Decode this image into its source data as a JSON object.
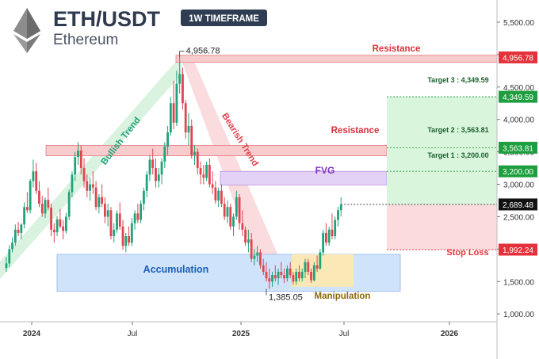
{
  "header": {
    "pair": "ETH/USDT",
    "asset": "Ethereum",
    "timeframe": "1W TIMEFRAME",
    "logo_icon": "ethereum-diamond-icon"
  },
  "colors": {
    "bull": "#1fa37a",
    "bear": "#e0454f",
    "resistance_fill": "#f8cccc",
    "resistance_text": "#d9303a",
    "target_fill": "#d9f6dd",
    "target_badge": "#1e9e3e",
    "stop_fill": "#fbdbdd",
    "stop_badge": "#e3323b",
    "fvg_fill": "#e3d2f5",
    "fvg_text": "#7d35b8",
    "accum_fill": "#cfe3fb",
    "accum_text": "#1a5fb8",
    "manip_fill": "#fae9b6",
    "manip_text": "#8a6a10",
    "price_badge": "#111111"
  },
  "chart_data": {
    "type": "candlestick",
    "title": "ETH/USDT",
    "xlabel": "",
    "ylabel": "",
    "x_ticks": [
      "2024",
      "Jul",
      "2025",
      "Jul",
      "2026"
    ],
    "y_ticks": [
      "5,500.00",
      "5,000.00",
      "4,500.00",
      "4,000.00",
      "3,500.00",
      "3,000.00",
      "2,500.00",
      "2,000.00",
      "1,500.00",
      "1,000.00"
    ],
    "ylim": [
      880,
      5720
    ],
    "grid": false,
    "last_price": "2,689.48",
    "price_badges": [
      {
        "text": "4,956.78",
        "kind": "resistance"
      },
      {
        "text": "4,349.59",
        "kind": "target"
      },
      {
        "text": "3,563.81",
        "kind": "target"
      },
      {
        "text": "3,200.00",
        "kind": "target"
      },
      {
        "text": "2,689.48",
        "kind": "current"
      },
      {
        "text": "1,992.24",
        "kind": "stop"
      }
    ],
    "annotations": {
      "ath": "4,956.78",
      "low": "1,385.05",
      "resistance": "Resistance",
      "fvg": "FVG",
      "accumulation": "Accumulation",
      "manipulation": "Manipulation",
      "bullish_trend": "Bullish Trend",
      "bearish_trend": "Bearish Trend",
      "target3": "Target 3 : 4,349.59",
      "target2": "Target 2 : 3,563.81",
      "target1": "Target 1 : 3,200.00",
      "stop_loss": "Stop Loss"
    },
    "levels": {
      "resistance_top": [
        4880,
        4990
      ],
      "resistance_mid": [
        3440,
        3600
      ],
      "fvg": [
        2990,
        3200
      ],
      "accumulation": [
        1350,
        1920
      ],
      "manipulation": [
        1420,
        1920
      ],
      "target_zone": [
        2689.48,
        4349.59
      ],
      "stop_zone": [
        1992.24,
        2689.48
      ]
    },
    "candles": [
      {
        "o": 1710,
        "h": 1880,
        "l": 1650,
        "c": 1780
      },
      {
        "o": 1780,
        "h": 2060,
        "l": 1720,
        "c": 2000
      },
      {
        "o": 2000,
        "h": 2180,
        "l": 1950,
        "c": 2100
      },
      {
        "o": 2100,
        "h": 2380,
        "l": 2050,
        "c": 2300
      },
      {
        "o": 2300,
        "h": 2420,
        "l": 2200,
        "c": 2250
      },
      {
        "o": 2250,
        "h": 2400,
        "l": 2150,
        "c": 2380
      },
      {
        "o": 2380,
        "h": 2720,
        "l": 2320,
        "c": 2650
      },
      {
        "o": 2650,
        "h": 2880,
        "l": 2560,
        "c": 2600
      },
      {
        "o": 2600,
        "h": 3080,
        "l": 2550,
        "c": 3050
      },
      {
        "o": 3050,
        "h": 3380,
        "l": 2950,
        "c": 3200
      },
      {
        "o": 3200,
        "h": 3330,
        "l": 2850,
        "c": 2900
      },
      {
        "o": 2900,
        "h": 3050,
        "l": 2650,
        "c": 2700
      },
      {
        "o": 2700,
        "h": 2820,
        "l": 2500,
        "c": 2550
      },
      {
        "o": 2550,
        "h": 2800,
        "l": 2480,
        "c": 2760
      },
      {
        "o": 2760,
        "h": 2950,
        "l": 2600,
        "c": 2640
      },
      {
        "o": 2640,
        "h": 2700,
        "l": 2200,
        "c": 2300
      },
      {
        "o": 2300,
        "h": 2400,
        "l": 2100,
        "c": 2260
      },
      {
        "o": 2260,
        "h": 2510,
        "l": 2200,
        "c": 2460
      },
      {
        "o": 2460,
        "h": 2620,
        "l": 2320,
        "c": 2350
      },
      {
        "o": 2350,
        "h": 2450,
        "l": 2150,
        "c": 2280
      },
      {
        "o": 2280,
        "h": 2560,
        "l": 2240,
        "c": 2500
      },
      {
        "o": 2500,
        "h": 2920,
        "l": 2450,
        "c": 2880
      },
      {
        "o": 2880,
        "h": 3200,
        "l": 2800,
        "c": 3150
      },
      {
        "o": 3150,
        "h": 3500,
        "l": 3050,
        "c": 3420
      },
      {
        "o": 3420,
        "h": 3650,
        "l": 3300,
        "c": 3520
      },
      {
        "o": 3520,
        "h": 3600,
        "l": 3150,
        "c": 3250
      },
      {
        "o": 3250,
        "h": 3400,
        "l": 2950,
        "c": 3050
      },
      {
        "o": 3050,
        "h": 3150,
        "l": 2800,
        "c": 2900
      },
      {
        "o": 2900,
        "h": 3100,
        "l": 2750,
        "c": 3000
      },
      {
        "o": 3000,
        "h": 3200,
        "l": 2850,
        "c": 2950
      },
      {
        "o": 2950,
        "h": 3050,
        "l": 2600,
        "c": 2650
      },
      {
        "o": 2650,
        "h": 2850,
        "l": 2550,
        "c": 2800
      },
      {
        "o": 2800,
        "h": 3000,
        "l": 2650,
        "c": 2700
      },
      {
        "o": 2700,
        "h": 2800,
        "l": 2400,
        "c": 2500
      },
      {
        "o": 2500,
        "h": 2700,
        "l": 2350,
        "c": 2600
      },
      {
        "o": 2600,
        "h": 2650,
        "l": 2150,
        "c": 2200
      },
      {
        "o": 2200,
        "h": 2400,
        "l": 2100,
        "c": 2300
      },
      {
        "o": 2300,
        "h": 2600,
        "l": 2250,
        "c": 2550
      },
      {
        "o": 2550,
        "h": 2720,
        "l": 2300,
        "c": 2350
      },
      {
        "o": 2350,
        "h": 2450,
        "l": 1990,
        "c": 2050
      },
      {
        "o": 2050,
        "h": 2250,
        "l": 1950,
        "c": 2200
      },
      {
        "o": 2200,
        "h": 2350,
        "l": 2050,
        "c": 2100
      },
      {
        "o": 2100,
        "h": 2480,
        "l": 2050,
        "c": 2400
      },
      {
        "o": 2400,
        "h": 2600,
        "l": 2300,
        "c": 2550
      },
      {
        "o": 2550,
        "h": 2700,
        "l": 2400,
        "c": 2450
      },
      {
        "o": 2450,
        "h": 2750,
        "l": 2400,
        "c": 2700
      },
      {
        "o": 2700,
        "h": 2950,
        "l": 2600,
        "c": 2900
      },
      {
        "o": 2900,
        "h": 3200,
        "l": 2800,
        "c": 3150
      },
      {
        "o": 3150,
        "h": 3450,
        "l": 3050,
        "c": 3380
      },
      {
        "o": 3380,
        "h": 3550,
        "l": 3150,
        "c": 3250
      },
      {
        "o": 3250,
        "h": 3400,
        "l": 2950,
        "c": 3050
      },
      {
        "o": 3050,
        "h": 3250,
        "l": 2950,
        "c": 3150
      },
      {
        "o": 3150,
        "h": 3400,
        "l": 3000,
        "c": 3350
      },
      {
        "o": 3350,
        "h": 3650,
        "l": 3250,
        "c": 3580
      },
      {
        "o": 3580,
        "h": 3900,
        "l": 3450,
        "c": 3800
      },
      {
        "o": 3800,
        "h": 4350,
        "l": 3750,
        "c": 4250
      },
      {
        "o": 4250,
        "h": 4600,
        "l": 3850,
        "c": 3950
      },
      {
        "o": 3950,
        "h": 4750,
        "l": 3900,
        "c": 4550
      },
      {
        "o": 4550,
        "h": 4956.78,
        "l": 4400,
        "c": 4700
      },
      {
        "o": 4700,
        "h": 4800,
        "l": 4150,
        "c": 4250
      },
      {
        "o": 4250,
        "h": 4300,
        "l": 3700,
        "c": 3800
      },
      {
        "o": 3800,
        "h": 4100,
        "l": 3600,
        "c": 3900
      },
      {
        "o": 3900,
        "h": 4000,
        "l": 3400,
        "c": 3450
      },
      {
        "o": 3450,
        "h": 3600,
        "l": 3300,
        "c": 3500
      },
      {
        "o": 3500,
        "h": 3550,
        "l": 3150,
        "c": 3250
      },
      {
        "o": 3250,
        "h": 3350,
        "l": 3000,
        "c": 3150
      },
      {
        "o": 3150,
        "h": 3300,
        "l": 3000,
        "c": 3100
      },
      {
        "o": 3100,
        "h": 3350,
        "l": 3050,
        "c": 3300
      },
      {
        "o": 3300,
        "h": 3400,
        "l": 2950,
        "c": 3000
      },
      {
        "o": 3000,
        "h": 3200,
        "l": 2850,
        "c": 2950
      },
      {
        "o": 2950,
        "h": 3050,
        "l": 2700,
        "c": 2750
      },
      {
        "o": 2750,
        "h": 2950,
        "l": 2650,
        "c": 2900
      },
      {
        "o": 2900,
        "h": 3000,
        "l": 2650,
        "c": 2700
      },
      {
        "o": 2700,
        "h": 2800,
        "l": 2450,
        "c": 2500
      },
      {
        "o": 2500,
        "h": 2750,
        "l": 2400,
        "c": 2650
      },
      {
        "o": 2650,
        "h": 2700,
        "l": 2300,
        "c": 2350
      },
      {
        "o": 2350,
        "h": 2550,
        "l": 2200,
        "c": 2500
      },
      {
        "o": 2500,
        "h": 2900,
        "l": 2450,
        "c": 2800
      },
      {
        "o": 2800,
        "h": 2850,
        "l": 2300,
        "c": 2400
      },
      {
        "o": 2400,
        "h": 2600,
        "l": 2200,
        "c": 2300
      },
      {
        "o": 2300,
        "h": 2350,
        "l": 2050,
        "c": 2100
      },
      {
        "o": 2100,
        "h": 2300,
        "l": 1950,
        "c": 2150
      },
      {
        "o": 2150,
        "h": 2250,
        "l": 1800,
        "c": 1850
      },
      {
        "o": 1850,
        "h": 2000,
        "l": 1750,
        "c": 1900
      },
      {
        "o": 1900,
        "h": 2050,
        "l": 1800,
        "c": 1950
      },
      {
        "o": 1950,
        "h": 2000,
        "l": 1700,
        "c": 1750
      },
      {
        "o": 1750,
        "h": 1850,
        "l": 1600,
        "c": 1650
      },
      {
        "o": 1650,
        "h": 1800,
        "l": 1500,
        "c": 1550
      },
      {
        "o": 1550,
        "h": 1700,
        "l": 1385.05,
        "c": 1500
      },
      {
        "o": 1500,
        "h": 1650,
        "l": 1420,
        "c": 1600
      },
      {
        "o": 1600,
        "h": 1750,
        "l": 1500,
        "c": 1550
      },
      {
        "o": 1550,
        "h": 1700,
        "l": 1450,
        "c": 1650
      },
      {
        "o": 1650,
        "h": 1800,
        "l": 1550,
        "c": 1600
      },
      {
        "o": 1600,
        "h": 1700,
        "l": 1480,
        "c": 1550
      },
      {
        "o": 1550,
        "h": 1750,
        "l": 1500,
        "c": 1700
      },
      {
        "o": 1700,
        "h": 1800,
        "l": 1550,
        "c": 1600
      },
      {
        "o": 1600,
        "h": 1650,
        "l": 1450,
        "c": 1500
      },
      {
        "o": 1500,
        "h": 1700,
        "l": 1450,
        "c": 1650
      },
      {
        "o": 1650,
        "h": 1750,
        "l": 1500,
        "c": 1550
      },
      {
        "o": 1550,
        "h": 1700,
        "l": 1500,
        "c": 1650
      },
      {
        "o": 1650,
        "h": 1850,
        "l": 1550,
        "c": 1800
      },
      {
        "o": 1800,
        "h": 1850,
        "l": 1600,
        "c": 1650
      },
      {
        "o": 1650,
        "h": 1700,
        "l": 1480,
        "c": 1520
      },
      {
        "o": 1520,
        "h": 1800,
        "l": 1500,
        "c": 1750
      },
      {
        "o": 1750,
        "h": 1900,
        "l": 1650,
        "c": 1700
      },
      {
        "o": 1700,
        "h": 2000,
        "l": 1680,
        "c": 1950
      },
      {
        "o": 1950,
        "h": 2300,
        "l": 1900,
        "c": 2250
      },
      {
        "o": 2250,
        "h": 2400,
        "l": 2050,
        "c": 2100
      },
      {
        "o": 2100,
        "h": 2350,
        "l": 2050,
        "c": 2300
      },
      {
        "o": 2300,
        "h": 2550,
        "l": 2150,
        "c": 2200
      },
      {
        "o": 2200,
        "h": 2500,
        "l": 2150,
        "c": 2450
      },
      {
        "o": 2450,
        "h": 2650,
        "l": 2350,
        "c": 2600
      },
      {
        "o": 2600,
        "h": 2800,
        "l": 2500,
        "c": 2689.48
      }
    ]
  }
}
